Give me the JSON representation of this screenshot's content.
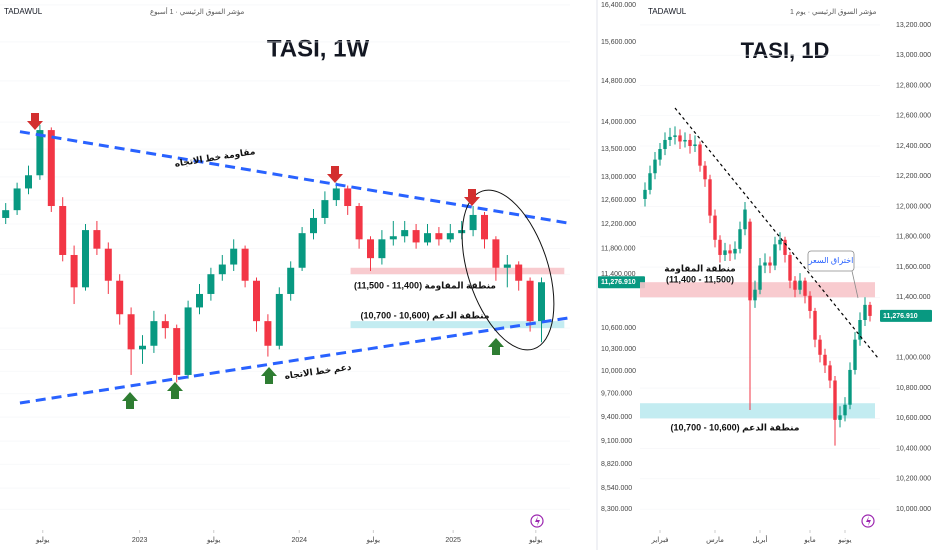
{
  "chart_data": [
    {
      "type": "candlestick",
      "title": "TASI, 1W",
      "exchange": "TADAWUL",
      "subtitle": "مؤشر السوق الرئيسي · 1 أسبوع",
      "log_scale": true,
      "ylim": [
        8070,
        16510
      ],
      "xlim": [
        -2,
        198
      ],
      "yticks": [
        {
          "value": 16400,
          "label": "16,400.000"
        },
        {
          "value": 15600,
          "label": "15,600.000"
        },
        {
          "value": 14800,
          "label": "14,800.000"
        },
        {
          "value": 14000,
          "label": "14,000.000"
        },
        {
          "value": 13500,
          "label": "13,500.000"
        },
        {
          "value": 13000,
          "label": "13,000.000"
        },
        {
          "value": 12600,
          "label": "12,600.000"
        },
        {
          "value": 12200,
          "label": "12,200.000"
        },
        {
          "value": 11800,
          "label": "11,800.000"
        },
        {
          "value": 11400,
          "label": "11,400.000"
        },
        {
          "value": 10600,
          "label": "10,600.000"
        },
        {
          "value": 10300,
          "label": "10,300.000"
        },
        {
          "value": 10000,
          "label": "10,000.000"
        },
        {
          "value": 9700,
          "label": "9,700.000"
        },
        {
          "value": 9400,
          "label": "9,400.000"
        },
        {
          "value": 9100,
          "label": "9,100.000"
        },
        {
          "value": 8820,
          "label": "8,820.000"
        },
        {
          "value": 8540,
          "label": "8,540.000"
        },
        {
          "value": 8300,
          "label": "8,300.000"
        }
      ],
      "xticks": [
        {
          "value": 13,
          "label": "يوليو"
        },
        {
          "value": 47,
          "label": "2023"
        },
        {
          "value": 73,
          "label": "يوليو"
        },
        {
          "value": 103,
          "label": "2024"
        },
        {
          "value": 129,
          "label": "يوليو"
        },
        {
          "value": 157,
          "label": "2025"
        },
        {
          "value": 186,
          "label": "يوليو"
        }
      ],
      "up_color": "#089981",
      "down_color": "#f23645",
      "last_price": {
        "value": 11276.91,
        "label": "11,276.910"
      },
      "candles": [
        {
          "x": 0,
          "o": 12300,
          "h": 12550,
          "l": 12200,
          "c": 12430
        },
        {
          "x": 4,
          "o": 12430,
          "h": 12900,
          "l": 12350,
          "c": 12800
        },
        {
          "x": 8,
          "o": 12800,
          "h": 13200,
          "l": 12700,
          "c": 13030
        },
        {
          "x": 12,
          "o": 13030,
          "h": 13950,
          "l": 12950,
          "c": 13850
        },
        {
          "x": 16,
          "o": 13850,
          "h": 13900,
          "l": 12400,
          "c": 12500
        },
        {
          "x": 20,
          "o": 12500,
          "h": 12650,
          "l": 11600,
          "c": 11700
        },
        {
          "x": 24,
          "o": 11700,
          "h": 11850,
          "l": 10950,
          "c": 11200
        },
        {
          "x": 28,
          "o": 11200,
          "h": 12200,
          "l": 11150,
          "c": 12100
        },
        {
          "x": 32,
          "o": 12100,
          "h": 12250,
          "l": 11700,
          "c": 11800
        },
        {
          "x": 36,
          "o": 11800,
          "h": 11900,
          "l": 11100,
          "c": 11300
        },
        {
          "x": 40,
          "o": 11300,
          "h": 11400,
          "l": 10650,
          "c": 10800
        },
        {
          "x": 44,
          "o": 10800,
          "h": 10900,
          "l": 9950,
          "c": 10300
        },
        {
          "x": 48,
          "o": 10300,
          "h": 10500,
          "l": 10100,
          "c": 10350
        },
        {
          "x": 52,
          "o": 10350,
          "h": 10850,
          "l": 10250,
          "c": 10700
        },
        {
          "x": 56,
          "o": 10700,
          "h": 10800,
          "l": 10450,
          "c": 10600
        },
        {
          "x": 60,
          "o": 10600,
          "h": 10650,
          "l": 9850,
          "c": 9950
        },
        {
          "x": 64,
          "o": 9950,
          "h": 11000,
          "l": 9900,
          "c": 10900
        },
        {
          "x": 68,
          "o": 10900,
          "h": 11250,
          "l": 10800,
          "c": 11100
        },
        {
          "x": 72,
          "o": 11100,
          "h": 11500,
          "l": 11000,
          "c": 11400
        },
        {
          "x": 76,
          "o": 11400,
          "h": 11700,
          "l": 11300,
          "c": 11550
        },
        {
          "x": 80,
          "o": 11550,
          "h": 11950,
          "l": 11450,
          "c": 11800
        },
        {
          "x": 84,
          "o": 11800,
          "h": 11850,
          "l": 11200,
          "c": 11300
        },
        {
          "x": 88,
          "o": 11300,
          "h": 11350,
          "l": 10550,
          "c": 10700
        },
        {
          "x": 92,
          "o": 10700,
          "h": 10800,
          "l": 10200,
          "c": 10350
        },
        {
          "x": 96,
          "o": 10350,
          "h": 11200,
          "l": 10300,
          "c": 11100
        },
        {
          "x": 100,
          "o": 11100,
          "h": 11600,
          "l": 11000,
          "c": 11500
        },
        {
          "x": 104,
          "o": 11500,
          "h": 12150,
          "l": 11450,
          "c": 12050
        },
        {
          "x": 108,
          "o": 12050,
          "h": 12450,
          "l": 11950,
          "c": 12300
        },
        {
          "x": 112,
          "o": 12300,
          "h": 12750,
          "l": 12200,
          "c": 12600
        },
        {
          "x": 116,
          "o": 12600,
          "h": 12900,
          "l": 12500,
          "c": 12800
        },
        {
          "x": 120,
          "o": 12800,
          "h": 12850,
          "l": 12350,
          "c": 12500
        },
        {
          "x": 124,
          "o": 12500,
          "h": 12550,
          "l": 11800,
          "c": 11950
        },
        {
          "x": 128,
          "o": 11950,
          "h": 12000,
          "l": 11450,
          "c": 11650
        },
        {
          "x": 132,
          "o": 11650,
          "h": 12100,
          "l": 11550,
          "c": 11950
        },
        {
          "x": 136,
          "o": 11950,
          "h": 12250,
          "l": 11850,
          "c": 12000
        },
        {
          "x": 140,
          "o": 12000,
          "h": 12250,
          "l": 11900,
          "c": 12100
        },
        {
          "x": 144,
          "o": 12100,
          "h": 12200,
          "l": 11800,
          "c": 11900
        },
        {
          "x": 148,
          "o": 11900,
          "h": 12200,
          "l": 11850,
          "c": 12050
        },
        {
          "x": 152,
          "o": 12050,
          "h": 12150,
          "l": 11850,
          "c": 11950
        },
        {
          "x": 156,
          "o": 11950,
          "h": 12200,
          "l": 11900,
          "c": 12050
        },
        {
          "x": 160,
          "o": 12050,
          "h": 12250,
          "l": 11950,
          "c": 12100
        },
        {
          "x": 164,
          "o": 12100,
          "h": 12500,
          "l": 12000,
          "c": 12350
        },
        {
          "x": 168,
          "o": 12350,
          "h": 12400,
          "l": 11800,
          "c": 11950
        },
        {
          "x": 172,
          "o": 11950,
          "h": 12000,
          "l": 11300,
          "c": 11500
        },
        {
          "x": 176,
          "o": 11500,
          "h": 11700,
          "l": 11200,
          "c": 11550
        },
        {
          "x": 180,
          "o": 11550,
          "h": 11600,
          "l": 11150,
          "c": 11300
        },
        {
          "x": 184,
          "o": 11300,
          "h": 11350,
          "l": 10550,
          "c": 10700
        },
        {
          "x": 188,
          "o": 10700,
          "h": 11350,
          "l": 10400,
          "c": 11277
        }
      ],
      "trendlines": [
        {
          "color": "#2962ff",
          "x": [
            5,
            198
          ],
          "y": [
            13820,
            12210
          ]
        },
        {
          "color": "#2962ff",
          "x": [
            5,
            198
          ],
          "y": [
            9580,
            10750
          ]
        }
      ],
      "zones": [
        {
          "label": "منطقة المقاومة (11,400 - 11,500)",
          "range": [
            11400,
            11500
          ],
          "from": 121,
          "to": 196,
          "color": "#f7c5ca"
        },
        {
          "label": "منطقة الدعم (10,600 - 10,700)",
          "range": [
            10600,
            10700
          ],
          "from": 121,
          "to": 196,
          "color": "#bdeaf0"
        }
      ],
      "annotations": [
        "مقاومة خط الاتجاه",
        "دعم خط الاتجاه"
      ]
    },
    {
      "type": "candlestick",
      "title": "TASI, 1D",
      "exchange": "TADAWUL",
      "subtitle": "مؤشر السوق الرئيسي · يوم 1",
      "log_scale": false,
      "ylim": [
        9862,
        13365
      ],
      "xlim": [
        -1,
        47
      ],
      "yticks": [
        {
          "value": 13200,
          "label": "13,200.000"
        },
        {
          "value": 13000,
          "label": "13,000.000"
        },
        {
          "value": 12800,
          "label": "12,800.000"
        },
        {
          "value": 12600,
          "label": "12,600.000"
        },
        {
          "value": 12400,
          "label": "12,400.000"
        },
        {
          "value": 12200,
          "label": "12,200.000"
        },
        {
          "value": 12000,
          "label": "12,000.000"
        },
        {
          "value": 11800,
          "label": "11,800.000"
        },
        {
          "value": 11600,
          "label": "11,600.000"
        },
        {
          "value": 11400,
          "label": "11,400.000"
        },
        {
          "value": 11000,
          "label": "11,000.000"
        },
        {
          "value": 10800,
          "label": "10,800.000"
        },
        {
          "value": 10600,
          "label": "10,600.000"
        },
        {
          "value": 10400,
          "label": "10,400.000"
        },
        {
          "value": 10200,
          "label": "10,200.000"
        },
        {
          "value": 10000,
          "label": "10,000.000"
        }
      ],
      "xticks": [
        {
          "value": 3,
          "label": "فبراير"
        },
        {
          "value": 14,
          "label": "مارس"
        },
        {
          "value": 23,
          "label": "أبريل"
        },
        {
          "value": 33,
          "label": "مايو"
        },
        {
          "value": 40,
          "label": "يونيو"
        }
      ],
      "up_color": "#089981",
      "down_color": "#f23645",
      "last_price": {
        "value": 11276.91,
        "label": "11,276.910"
      },
      "candles": [
        {
          "x": 0,
          "o": 12050,
          "h": 12160,
          "l": 12000,
          "c": 12110
        },
        {
          "x": 1,
          "o": 12110,
          "h": 12270,
          "l": 12080,
          "c": 12220
        },
        {
          "x": 2,
          "o": 12220,
          "h": 12360,
          "l": 12180,
          "c": 12310
        },
        {
          "x": 3,
          "o": 12310,
          "h": 12420,
          "l": 12270,
          "c": 12380
        },
        {
          "x": 4,
          "o": 12380,
          "h": 12490,
          "l": 12340,
          "c": 12440
        },
        {
          "x": 5,
          "o": 12440,
          "h": 12520,
          "l": 12400,
          "c": 12460
        },
        {
          "x": 6,
          "o": 12460,
          "h": 12530,
          "l": 12410,
          "c": 12470
        },
        {
          "x": 7,
          "o": 12470,
          "h": 12510,
          "l": 12380,
          "c": 12430
        },
        {
          "x": 8,
          "o": 12430,
          "h": 12490,
          "l": 12390,
          "c": 12440
        },
        {
          "x": 9,
          "o": 12440,
          "h": 12480,
          "l": 12350,
          "c": 12400
        },
        {
          "x": 10,
          "o": 12400,
          "h": 12470,
          "l": 12360,
          "c": 12410
        },
        {
          "x": 11,
          "o": 12410,
          "h": 12430,
          "l": 12230,
          "c": 12270
        },
        {
          "x": 12,
          "o": 12270,
          "h": 12300,
          "l": 12130,
          "c": 12180
        },
        {
          "x": 13,
          "o": 12180,
          "h": 12210,
          "l": 11890,
          "c": 11940
        },
        {
          "x": 14,
          "o": 11940,
          "h": 11980,
          "l": 11730,
          "c": 11780
        },
        {
          "x": 15,
          "o": 11780,
          "h": 11810,
          "l": 11630,
          "c": 11680
        },
        {
          "x": 16,
          "o": 11680,
          "h": 11760,
          "l": 11640,
          "c": 11710
        },
        {
          "x": 17,
          "o": 11710,
          "h": 11750,
          "l": 11640,
          "c": 11690
        },
        {
          "x": 18,
          "o": 11690,
          "h": 11770,
          "l": 11650,
          "c": 11720
        },
        {
          "x": 19,
          "o": 11720,
          "h": 11900,
          "l": 11690,
          "c": 11850
        },
        {
          "x": 20,
          "o": 11850,
          "h": 12030,
          "l": 11810,
          "c": 11980
        },
        {
          "x": 21,
          "o": 11900,
          "h": 11920,
          "l": 10655,
          "c": 11380
        },
        {
          "x": 22,
          "o": 11380,
          "h": 11510,
          "l": 11330,
          "c": 11450
        },
        {
          "x": 23,
          "o": 11450,
          "h": 11660,
          "l": 11420,
          "c": 11610
        },
        {
          "x": 24,
          "o": 11610,
          "h": 11690,
          "l": 11560,
          "c": 11630
        },
        {
          "x": 25,
          "o": 11630,
          "h": 11670,
          "l": 11560,
          "c": 11610
        },
        {
          "x": 26,
          "o": 11610,
          "h": 11800,
          "l": 11580,
          "c": 11750
        },
        {
          "x": 27,
          "o": 11750,
          "h": 11830,
          "l": 11710,
          "c": 11780
        },
        {
          "x": 28,
          "o": 11780,
          "h": 11800,
          "l": 11630,
          "c": 11680
        },
        {
          "x": 29,
          "o": 11680,
          "h": 11700,
          "l": 11460,
          "c": 11510
        },
        {
          "x": 30,
          "o": 11510,
          "h": 11540,
          "l": 11400,
          "c": 11450
        },
        {
          "x": 31,
          "o": 11450,
          "h": 11560,
          "l": 11420,
          "c": 11510
        },
        {
          "x": 32,
          "o": 11510,
          "h": 11530,
          "l": 11360,
          "c": 11410
        },
        {
          "x": 33,
          "o": 11410,
          "h": 11440,
          "l": 11260,
          "c": 11310
        },
        {
          "x": 34,
          "o": 11310,
          "h": 11330,
          "l": 11070,
          "c": 11120
        },
        {
          "x": 35,
          "o": 11120,
          "h": 11150,
          "l": 10970,
          "c": 11020
        },
        {
          "x": 36,
          "o": 11020,
          "h": 11060,
          "l": 10900,
          "c": 10950
        },
        {
          "x": 37,
          "o": 10950,
          "h": 10980,
          "l": 10800,
          "c": 10850
        },
        {
          "x": 38,
          "o": 10850,
          "h": 10880,
          "l": 10420,
          "c": 10590
        },
        {
          "x": 39,
          "o": 10590,
          "h": 10680,
          "l": 10540,
          "c": 10620
        },
        {
          "x": 40,
          "o": 10620,
          "h": 10740,
          "l": 10580,
          "c": 10690
        },
        {
          "x": 41,
          "o": 10690,
          "h": 10970,
          "l": 10660,
          "c": 10920
        },
        {
          "x": 42,
          "o": 10920,
          "h": 11170,
          "l": 10890,
          "c": 11120
        },
        {
          "x": 43,
          "o": 11120,
          "h": 11300,
          "l": 11080,
          "c": 11250
        },
        {
          "x": 44,
          "o": 11250,
          "h": 11400,
          "l": 11210,
          "c": 11350
        },
        {
          "x": 45,
          "o": 11350,
          "h": 11370,
          "l": 11240,
          "c": 11277
        }
      ],
      "trendlines": [
        {
          "color": "#000000",
          "x": [
            6,
            46.6
          ],
          "y": [
            12651,
            10999
          ]
        }
      ],
      "zones": [
        {
          "label": "منطقة المقاومة",
          "sublabel": "(11,400 - 11,500)",
          "range": [
            11400,
            11500
          ],
          "from": -1,
          "to": 46,
          "color": "#f7c5ca"
        },
        {
          "label": "منطقة الدعم (10,600 - 10,700)",
          "range": [
            10600,
            10700
          ],
          "from": -1,
          "to": 46,
          "color": "#bdeaf0"
        }
      ],
      "annotations": [
        "اختراق السعر"
      ]
    }
  ]
}
